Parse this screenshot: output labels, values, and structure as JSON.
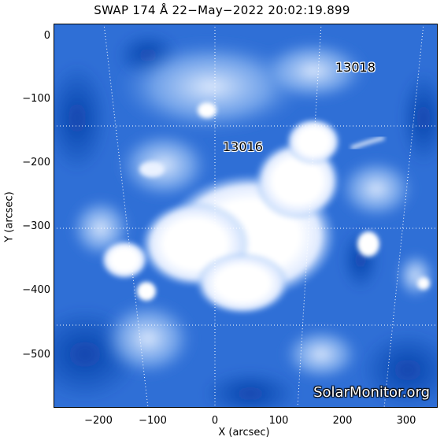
{
  "title": "SWAP 174 Å 22−May−2022 20:02:19.899",
  "xlabel": "X (arcsec)",
  "ylabel": "Y (arcsec)",
  "x_ticks": [
    "−200",
    "−100",
    "0",
    "100",
    "200",
    "300"
  ],
  "y_ticks": [
    "0",
    "−100",
    "−200",
    "−300",
    "−400",
    "−500"
  ],
  "active_regions": [
    {
      "label": "13016"
    },
    {
      "label": "13018"
    }
  ],
  "watermark": "SolarMonitor.org",
  "colors": {
    "background_blue": "#2f6fd6",
    "deep_blue": "#0a3fa8",
    "bright": "#ffffff",
    "grid": "#ffffff"
  }
}
